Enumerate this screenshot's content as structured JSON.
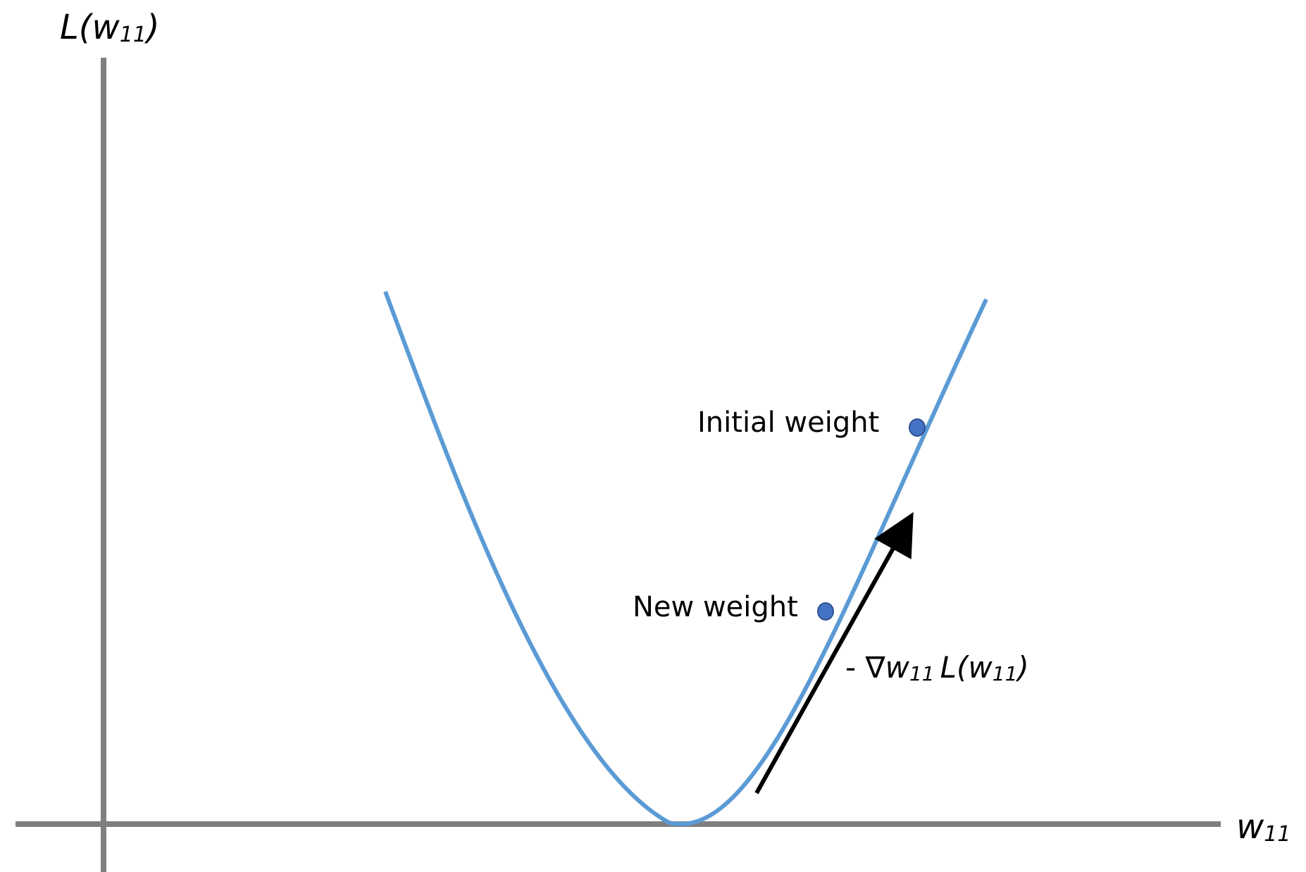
{
  "axes": {
    "y_label": {
      "main": "L(",
      "var": "w",
      "sub": "11",
      "close": ")"
    },
    "x_label": {
      "var": "w",
      "sub": "11"
    },
    "axis_color": "#7f7f7f"
  },
  "curve": {
    "color": "#5b9bd5",
    "shape": "parabola"
  },
  "points": {
    "initial": {
      "label": "Initial weight",
      "color": "#4472c4"
    },
    "new": {
      "label": "New weight",
      "color": "#4472c4"
    }
  },
  "gradient": {
    "label_prefix": "- ∇",
    "label_var": "w",
    "label_sub": "11",
    "label_fn": "L(",
    "label_fn_var": "w",
    "label_fn_sub": "11",
    "label_close": ")",
    "arrow_color": "#000000"
  }
}
